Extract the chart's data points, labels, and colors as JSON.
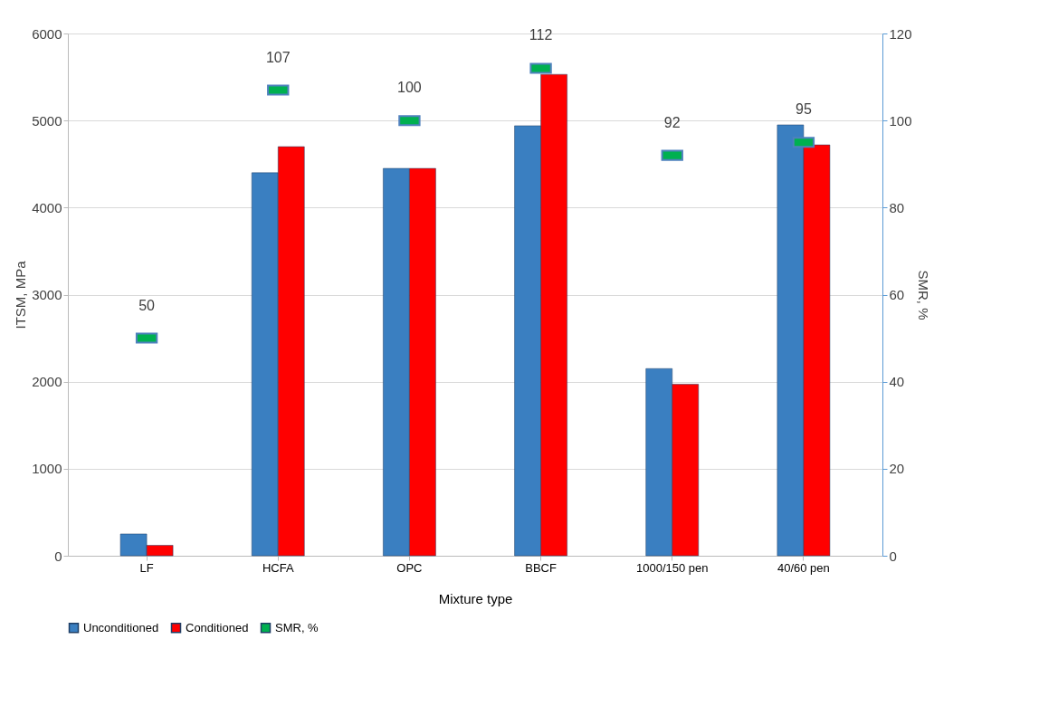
{
  "chart_data": {
    "type": "bar",
    "xlabel": "Mixture type",
    "ylabel": "ITSM, MPa",
    "y2label": "SMR, %",
    "categories": [
      "LF",
      "HCFA",
      "OPC",
      "BBCF",
      "1000/150 pen",
      "40/60 pen"
    ],
    "series": [
      {
        "name": "Unconditioned",
        "color": "#3a7fc1",
        "values": [
          250,
          4400,
          4450,
          4940,
          2150,
          4950
        ]
      },
      {
        "name": "Conditioned",
        "color": "#ff0000",
        "values": [
          120,
          4700,
          4450,
          5530,
          1970,
          4720
        ]
      },
      {
        "name": "SMR, %",
        "type": "scatter",
        "axis": "y2",
        "color": "#00b050",
        "value_labels": [
          "50",
          "107",
          "100",
          "112",
          "92",
          "95"
        ],
        "values": [
          50,
          107,
          100,
          112,
          92,
          95
        ]
      }
    ],
    "ylim": [
      0,
      6000
    ],
    "yticks": [
      0,
      1000,
      2000,
      3000,
      4000,
      5000,
      6000
    ],
    "y2lim": [
      0,
      120
    ],
    "y2ticks": [
      0,
      20,
      40,
      60,
      80,
      100,
      120
    ],
    "grid": "y",
    "legend": "bottom"
  }
}
